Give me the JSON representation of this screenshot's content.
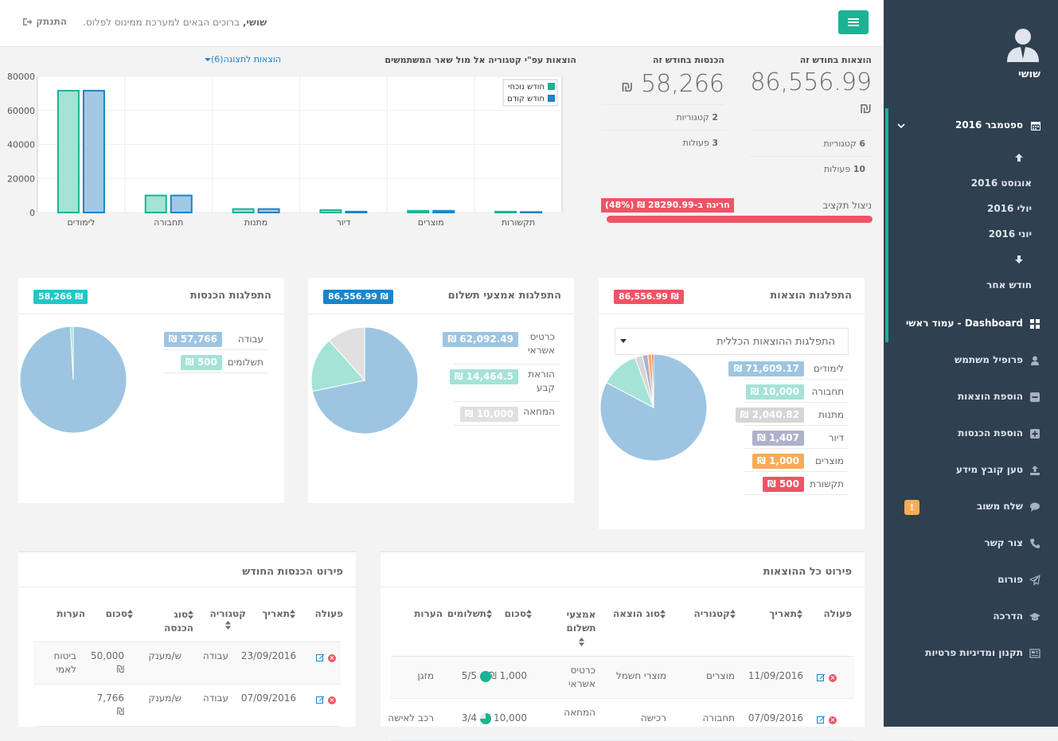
{
  "sidebar": {
    "user_name": "שושי",
    "month_current": "ספטמבר 2016",
    "months": [
      "אוגוסט 2016",
      "יולי 2016",
      "יוני 2016"
    ],
    "other_month": "חודש אחר",
    "nav": [
      {
        "label": "Dashboard - עמוד ראשי",
        "icon": "dashboard-icon"
      },
      {
        "label": "פרופיל משתמש",
        "icon": "user-icon"
      },
      {
        "label": "הוספת הוצאות",
        "icon": "minus-square-icon"
      },
      {
        "label": "הוספת הכנסות",
        "icon": "plus-square-icon"
      },
      {
        "label": "טען קובץ מידע",
        "icon": "upload-icon"
      },
      {
        "label": "שלח משוב",
        "icon": "comment-icon"
      },
      {
        "label": "צור קשר",
        "icon": "phone-icon"
      },
      {
        "label": "פורום",
        "icon": "paper-plane-icon"
      },
      {
        "label": "הדרכה",
        "icon": "graduation-cap-icon"
      },
      {
        "label": "תקנון ומדיניות פרטיות",
        "icon": "newspaper-icon"
      }
    ],
    "feedback_badge": "!"
  },
  "topbar": {
    "welcome_name": "שושי,",
    "welcome_text": " ברוכים הבאים למערכת ממינוס לפלוס.",
    "logout": "התנתק"
  },
  "stats": {
    "expenses_title": "הוצאות בחודש זה",
    "expenses_value": "86,556.99",
    "currency": "₪",
    "expenses_categories_num": "6",
    "expenses_categories_lbl": "קטגוריות",
    "expenses_actions_num": "10",
    "expenses_actions_lbl": "פעולות",
    "income_title": "הכנסות בחודש זה",
    "income_value": "58,266",
    "income_categories_num": "2",
    "income_categories_lbl": "קטגוריות",
    "income_actions_num": "3",
    "income_actions_lbl": "פעולות",
    "budget_label": "ניצול תקציב",
    "budget_over": "חריגה ב-28290.99 ₪ (48%)",
    "budget_pct": 1.0
  },
  "compare_chart": {
    "title": "הוצאות עפ\"י קטגוריה אל מול שאר המשתמשים",
    "dropdown": "הוצאות לתצוגה(6)",
    "colors": {
      "current": "#1ab394",
      "previous": "#1c84c6"
    }
  },
  "chart_data": {
    "type": "bar",
    "categories": [
      "לימודים",
      "תחבורה",
      "מתנות",
      "דיור",
      "מוצרים",
      "תקשורות"
    ],
    "series": [
      {
        "name": "חודש נוכחי",
        "values": [
          71609,
          10000,
          2041,
          1407,
          1000,
          500
        ]
      },
      {
        "name": "חודש קודם",
        "values": [
          71609,
          10000,
          2041,
          500,
          1000,
          300
        ]
      }
    ],
    "ylim": [
      0,
      80000
    ],
    "yticks": [
      "80000",
      "60000",
      "40000",
      "20000",
      "0"
    ],
    "legend": "top-right",
    "grid": true
  },
  "expense_dist": {
    "title": "התפלגות הוצאות",
    "total": "86,556.99 ₪",
    "select": "התפלגות ההוצאות הכללית",
    "items": [
      {
        "label": "לימודים",
        "value": "71,609.17 ₪",
        "amount": 71609.17,
        "color": "#9dc5e1"
      },
      {
        "label": "תחבורה",
        "value": "10,000 ₪",
        "amount": 10000,
        "color": "#a4e3d6"
      },
      {
        "label": "מתנות",
        "value": "2,040.82 ₪",
        "amount": 2040.82,
        "color": "#d6d6d6"
      },
      {
        "label": "דיור",
        "value": "1,407 ₪",
        "amount": 1407,
        "color": "#aeb1cc"
      },
      {
        "label": "מוצרים",
        "value": "1,000 ₪",
        "amount": 1000,
        "color": "#f8ac59"
      },
      {
        "label": "תקשורת",
        "value": "500 ₪",
        "amount": 500,
        "color": "#ed5565"
      }
    ]
  },
  "payment_dist": {
    "title": "התפלגות אמצעי תשלום",
    "total": "86,556.99 ₪",
    "items": [
      {
        "label": "כרטיס אשראי",
        "value": "62,092.49 ₪",
        "amount": 62092.49,
        "color": "#9dc5e1"
      },
      {
        "label": "הוראת קבע",
        "value": "14,464.5 ₪",
        "amount": 14464.5,
        "color": "#a4e3d6"
      },
      {
        "label": "המחאה",
        "value": "10,000 ₪",
        "amount": 10000,
        "color": "#e0e0e0"
      }
    ]
  },
  "income_dist": {
    "title": "התפלגות הכנסות",
    "total": "58,266 ₪",
    "items": [
      {
        "label": "עבודה",
        "value": "57,766 ₪",
        "amount": 57766,
        "color": "#9dc5e1"
      },
      {
        "label": "תשלומים",
        "value": "500 ₪",
        "amount": 500,
        "color": "#a4e3d6"
      }
    ]
  },
  "expenses_table": {
    "title": "פירוט כל ההוצאות",
    "headers": [
      "פעולה",
      "תאריך",
      "קטגוריה",
      "סוג הוצאה",
      "אמצעי תשלום",
      "סכום",
      "תשלומים",
      "הערות"
    ],
    "rows": [
      {
        "date": "11/09/2016",
        "category": "מוצרים",
        "type": "מוצרי חשמל",
        "method": "כרטיס אשראי",
        "amount": "1,000 ₪",
        "payments": "5/5",
        "payments_frac": 1.0,
        "notes": "מזגן"
      },
      {
        "date": "07/09/2016",
        "category": "תחבורה",
        "type": "רכישה",
        "method": "המחאה",
        "amount": "10,000 ₪",
        "payments": "3/4",
        "payments_frac": 0.75,
        "notes": "רכב לאישה"
      }
    ]
  },
  "income_table": {
    "title": "פירוט הכנסות החודש",
    "headers": [
      "פעולה",
      "תאריך",
      "קטגוריה",
      "סוג הכנסה",
      "סכום",
      "הערות"
    ],
    "rows": [
      {
        "date": "23/09/2016",
        "category": "עבודה",
        "type": "ש/מענק",
        "amount": "50,000 ₪",
        "notes": "ביטוח לאמי"
      },
      {
        "date": "07/09/2016",
        "category": "עבודה",
        "type": "ש/מענק",
        "amount": "7,766 ₪",
        "notes": ""
      }
    ]
  }
}
